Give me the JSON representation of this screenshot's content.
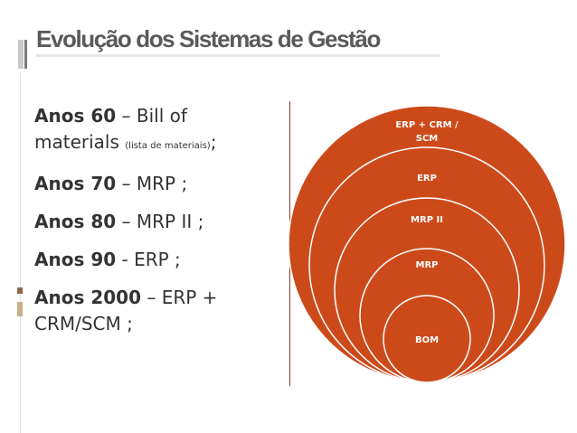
{
  "slide": {
    "title": "Evolução dos Sistemas de Gestão"
  },
  "bullets": {
    "b1": {
      "bold": "Anos 60",
      "rest_1": " – Bill of",
      "rest_2": "materials ",
      "small": "(lista de materiais)",
      "end": ";"
    },
    "b2": {
      "bold": "Anos 70",
      "rest": " – MRP ;"
    },
    "b3": {
      "bold": "Anos 80",
      "rest": " – MRP II ;"
    },
    "b4": {
      "bold": "Anos 90",
      "rest": " - ERP ;"
    },
    "b5": {
      "bold": "Anos 2000",
      "rest_1": " – ERP +",
      "rest_2": "CRM/SCM ;"
    }
  },
  "diagram": {
    "fill_color": "#cc4a1a",
    "stroke_color": "#ffffff",
    "circles": [
      {
        "label_1": "ERP + CRM /",
        "label_2": "SCM"
      },
      {
        "label_1": "ERP"
      },
      {
        "label_1": "MRP II"
      },
      {
        "label_1": "MRP"
      },
      {
        "label_1": "BOM"
      }
    ]
  }
}
